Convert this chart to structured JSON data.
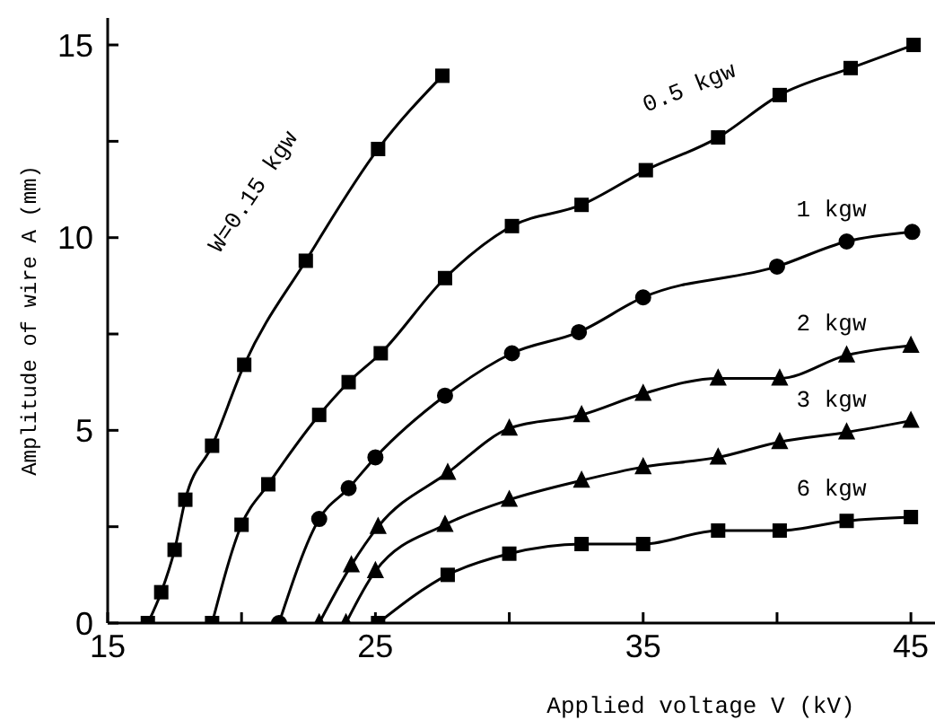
{
  "chart_data": {
    "type": "line",
    "xlabel": "Applied voltage  V (kV)",
    "ylabel": "Amplitude of wire  A (mm)",
    "xlim": [
      15,
      45.9
    ],
    "xticks": [
      15,
      {
        "value": 20,
        "label": null
      },
      25,
      {
        "value": 30,
        "label": null
      },
      35,
      {
        "value": 40,
        "label": null
      },
      45
    ],
    "ylim": [
      0,
      15.7
    ],
    "yticks": [
      0,
      {
        "value": 2.5,
        "label": null
      },
      5,
      {
        "value": 7.5,
        "label": null
      },
      10,
      {
        "value": 12.5,
        "label": null
      },
      15
    ],
    "grid": false,
    "legend": false,
    "line_style": "solid",
    "series": [
      {
        "name": "W=0.15 kgw",
        "color": "#000000",
        "marker": "square",
        "x": [
          16.5,
          17.0,
          17.5,
          17.9,
          18.9,
          20.1,
          22.4,
          25.1,
          27.5
        ],
        "values": [
          0,
          0.8,
          1.9,
          3.2,
          4.6,
          6.7,
          9.4,
          12.3,
          14.2
        ]
      },
      {
        "name": "0.5 kgw",
        "color": "#000000",
        "marker": "square",
        "x": [
          18.9,
          20.0,
          21.0,
          22.9,
          24.0,
          25.2,
          27.6,
          30.1,
          32.7,
          35.1,
          37.8,
          40.1,
          42.75,
          45.1
        ],
        "values": [
          0,
          2.55,
          3.6,
          5.4,
          6.25,
          7.0,
          8.95,
          10.3,
          10.85,
          11.75,
          12.6,
          13.7,
          14.4,
          15.0
        ]
      },
      {
        "name": "1 kgw",
        "color": "#000000",
        "marker": "circle",
        "x": [
          21.4,
          22.9,
          24.0,
          25.0,
          27.6,
          30.1,
          32.6,
          35.0,
          40.0,
          42.6,
          45.05
        ],
        "values": [
          0,
          2.7,
          3.5,
          4.3,
          5.9,
          7.0,
          7.55,
          8.45,
          9.25,
          9.9,
          10.15
        ]
      },
      {
        "name": "2 kgw",
        "color": "#000000",
        "marker": "triangle",
        "x": [
          22.9,
          24.1,
          25.1,
          27.7,
          30.0,
          32.7,
          35.0,
          37.8,
          40.1,
          42.6,
          45.0
        ],
        "values": [
          0,
          1.5,
          2.5,
          3.9,
          5.05,
          5.4,
          5.95,
          6.35,
          6.35,
          6.95,
          7.2
        ]
      },
      {
        "name": "3 kgw",
        "color": "#000000",
        "marker": "triangle",
        "x": [
          23.9,
          25.0,
          27.6,
          30.0,
          32.7,
          35.0,
          37.8,
          40.1,
          42.6,
          45.0
        ],
        "values": [
          0,
          1.35,
          2.55,
          3.2,
          3.7,
          4.05,
          4.3,
          4.7,
          4.95,
          5.25
        ]
      },
      {
        "name": "6 kgw",
        "color": "#000000",
        "marker": "square",
        "x": [
          25.1,
          27.7,
          30.0,
          32.7,
          35.0,
          37.8,
          40.1,
          42.6,
          45.0
        ],
        "values": [
          0,
          1.25,
          1.8,
          2.05,
          2.05,
          2.4,
          2.4,
          2.65,
          2.75
        ]
      }
    ]
  }
}
